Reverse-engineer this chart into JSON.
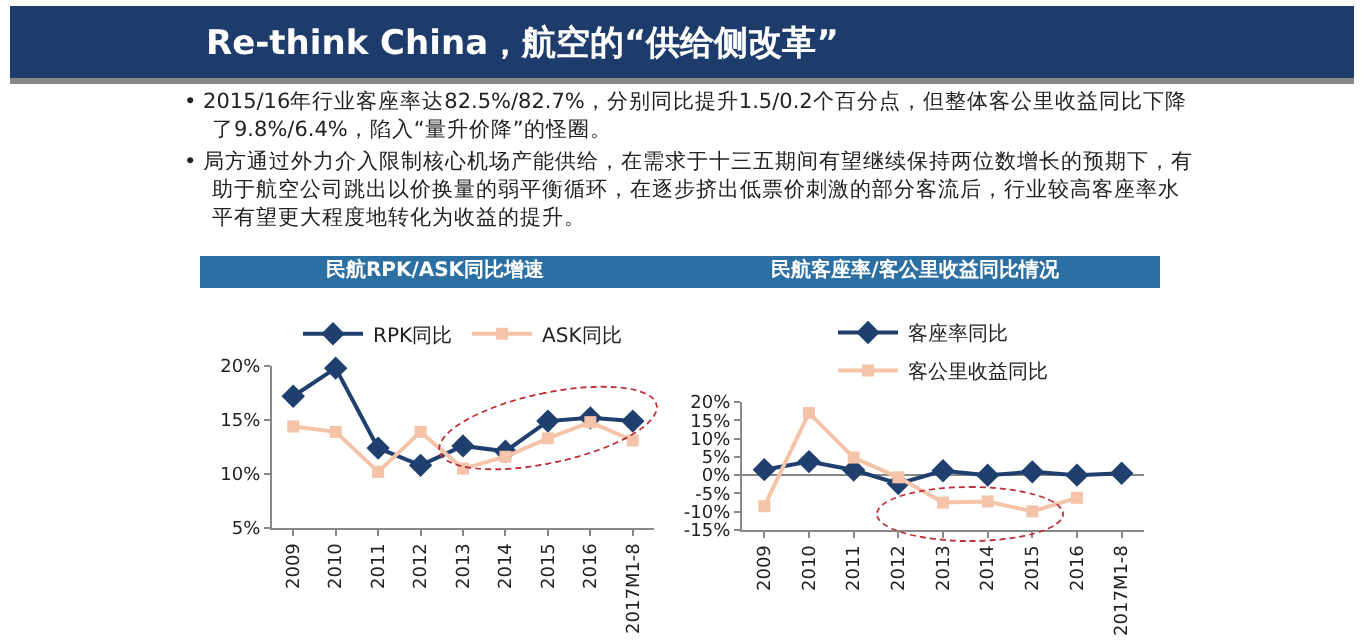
{
  "chart_data": [
    {
      "type": "other",
      "title": "Re-think China，航空的“供给侧改革”",
      "annotations": [
        "• 2015/16年行业客座率达82.5%/82.7%，分别同比提升1.5/0.2个百分点，但整体客公里收益同比下降了9.8%/6.4%，陷入“量升价降”的怪圈。",
        "• 局方通过外力介入限制核心机场产能供给，在需求于十三五期间有望继续保持两位数增长的预期下，有助于航空公司跳出以价换量的弱平衡循环，在逐步挤出低票价刺激的部分客流后，行业较高客座率水平有望更大程度地转化为收益的提升。"
      ]
    },
    {
      "type": "line",
      "title": "民航RPK/ASK同比增速",
      "categories": [
        "2009",
        "2010",
        "2011",
        "2012",
        "2013",
        "2014",
        "2015",
        "2016",
        "2017M1-8"
      ],
      "series": [
        {
          "name": "RPK同比",
          "color": "#1f3f6e",
          "marker": "diamond",
          "values": [
            17.2,
            19.8,
            12.4,
            10.8,
            12.6,
            12.1,
            14.9,
            15.2,
            14.9
          ]
        },
        {
          "name": "ASK同比",
          "color": "#f4c3a8",
          "marker": "square",
          "values": [
            14.4,
            13.9,
            10.2,
            13.9,
            10.5,
            11.6,
            13.3,
            14.8,
            13.1
          ]
        }
      ],
      "ylim": [
        5,
        20
      ],
      "yticks": [
        {
          "value": 5,
          "label": "5%"
        },
        {
          "value": 10,
          "label": "10%"
        },
        {
          "value": 15,
          "label": "15%"
        },
        {
          "value": 20,
          "label": "20%"
        }
      ],
      "legend": "top"
    },
    {
      "type": "line",
      "title": "民航客座率/客公里收益同比情况",
      "categories": [
        "2009",
        "2010",
        "2011",
        "2012",
        "2013",
        "2014",
        "2015",
        "2016",
        "2017M1-8"
      ],
      "series": [
        {
          "name": "客座率同比",
          "color": "#1f3f6e",
          "marker": "diamond",
          "values": [
            1.5,
            3.7,
            1.4,
            -2.3,
            1.2,
            0,
            0.9,
            0,
            0.5
          ]
        },
        {
          "name": "客公里收益同比",
          "color": "#f4c3a8",
          "marker": "square",
          "values": [
            -8.5,
            17,
            4.8,
            -0.6,
            -7.5,
            -7.2,
            -9.9,
            -6.2,
            null
          ]
        }
      ],
      "ylim": [
        -15,
        20
      ],
      "yticks": [
        {
          "value": -15,
          "label": "-15%"
        },
        {
          "value": -10,
          "label": "-10%"
        },
        {
          "value": -5,
          "label": "-5%"
        },
        {
          "value": 0,
          "label": "0%"
        },
        {
          "value": 5,
          "label": "5%"
        },
        {
          "value": 10,
          "label": "10%"
        },
        {
          "value": 15,
          "label": "15%"
        },
        {
          "value": 20,
          "label": "20%"
        }
      ],
      "legend": "top"
    }
  ]
}
